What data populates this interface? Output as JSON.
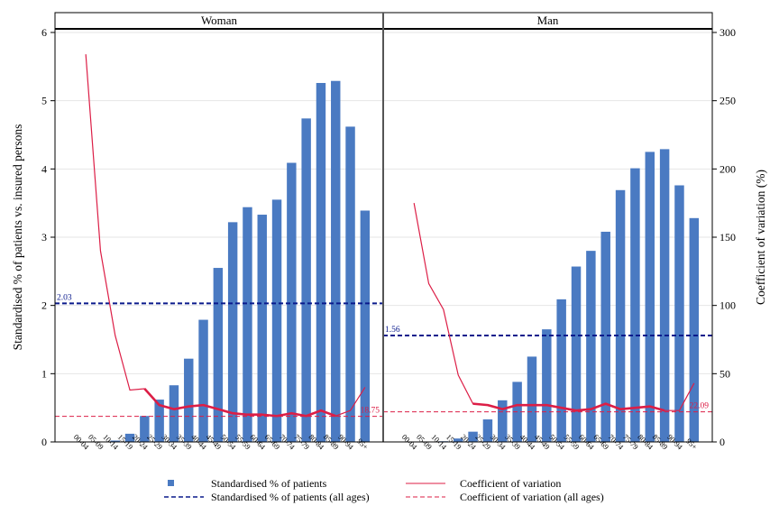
{
  "chart_data": {
    "type": "bar",
    "ylabel": "Standardised % of patients vs. insured persons",
    "y2label": "Coefficient of variation (%)",
    "ylim": [
      0,
      6
    ],
    "y2lim": [
      0,
      300
    ],
    "yticks": [
      "0",
      "1",
      "2",
      "3",
      "4",
      "5",
      "6"
    ],
    "y2ticks": [
      "0",
      "50",
      "100",
      "150",
      "200",
      "250",
      "300"
    ],
    "grid": true,
    "categories": [
      "00-04",
      "05-09",
      "10-14",
      "15-19",
      "20-24",
      "25-29",
      "30-34",
      "35-39",
      "40-44",
      "45-49",
      "50-54",
      "55-59",
      "60-64",
      "65-69",
      "70-74",
      "75-79",
      "80-84",
      "85-89",
      "90-94",
      "95+"
    ],
    "colors": {
      "bar": "#4a7ac2",
      "cv_line": "#dc1e46",
      "ref_pct": "#0a1a8c",
      "ref_cv": "#dc1e46"
    },
    "panels": [
      {
        "title": "Woman",
        "bars": [
          0,
          0,
          0.02,
          0.12,
          0.38,
          0.62,
          0.83,
          1.22,
          1.79,
          2.55,
          3.22,
          3.44,
          3.33,
          3.55,
          4.09,
          4.74,
          5.26,
          5.29,
          4.62,
          3.39
        ],
        "cv": [
          284,
          140,
          78,
          38,
          39,
          27,
          24,
          26,
          27,
          24,
          21,
          20,
          20,
          19,
          21,
          19,
          23,
          19,
          23,
          40
        ],
        "cv_thick_from": 4,
        "cv_thick_to": 17,
        "ref_pct": 2.03,
        "ref_pct_label": "2.03",
        "ref_cv": 18.75,
        "ref_cv_label": "18.75"
      },
      {
        "title": "Man",
        "bars": [
          0,
          0,
          0.01,
          0.05,
          0.15,
          0.33,
          0.61,
          0.88,
          1.25,
          1.65,
          2.09,
          2.57,
          2.8,
          3.08,
          3.69,
          4.01,
          4.25,
          4.29,
          3.76,
          3.28
        ],
        "cv": [
          175,
          116,
          97,
          49,
          28,
          27,
          24,
          27,
          27,
          27,
          25,
          23,
          24,
          28,
          24,
          25,
          26,
          23,
          23,
          43
        ],
        "cv_thick_from": 4,
        "cv_thick_to": 17,
        "ref_pct": 1.56,
        "ref_pct_label": "1.56",
        "ref_cv": 22.09,
        "ref_cv_label": "22.09"
      }
    ],
    "legend": {
      "placement": "bottom",
      "items": [
        {
          "label": "Standardised % of patients",
          "kind": "bar-square"
        },
        {
          "label": "Coefficient of variation",
          "kind": "cv-line"
        },
        {
          "label": "Standardised % of patients (all ages)",
          "kind": "pct-dash"
        },
        {
          "label": "Coefficient of variation (all ages)",
          "kind": "cv-dash"
        }
      ]
    }
  }
}
